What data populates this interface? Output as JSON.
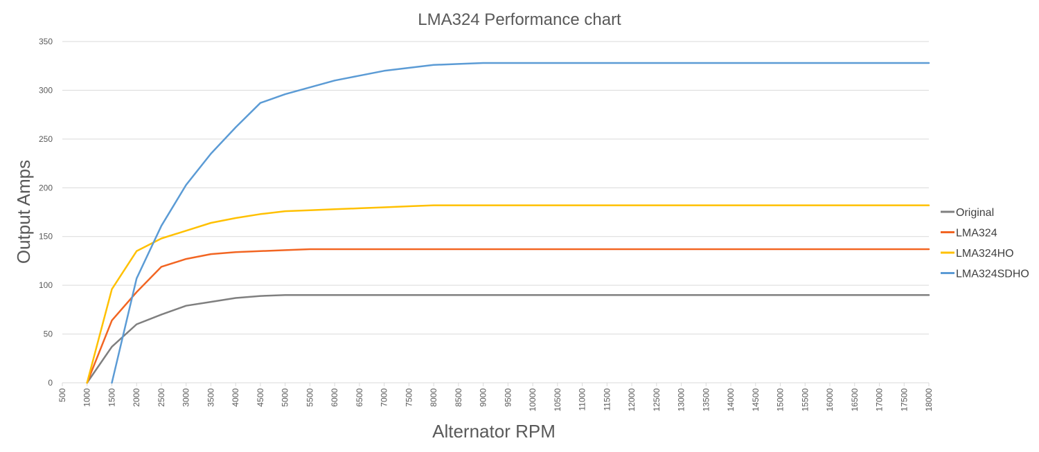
{
  "chart_data": {
    "type": "line",
    "title": "LMA324 Performance chart",
    "xlabel": "Alternator RPM",
    "ylabel": "Output Amps",
    "ylim": [
      0,
      350
    ],
    "y_ticks": [
      "0",
      "50",
      "100",
      "150",
      "200",
      "250",
      "300",
      "350"
    ],
    "grid": true,
    "legend_position": "right",
    "categories": [
      "500",
      "1000",
      "1500",
      "2000",
      "2500",
      "3000",
      "3500",
      "4000",
      "4500",
      "5000",
      "5500",
      "6000",
      "6500",
      "7000",
      "7500",
      "8000",
      "8500",
      "9000",
      "9500",
      "10000",
      "10500",
      "11000",
      "11500",
      "12000",
      "12500",
      "13000",
      "13500",
      "14000",
      "14500",
      "15000",
      "15500",
      "16000",
      "16500",
      "17000",
      "17500",
      "18000"
    ],
    "series": [
      {
        "name": "Original",
        "color": "#7f7f7f",
        "values": [
          null,
          0,
          37,
          60,
          70,
          79,
          83,
          87,
          89,
          90,
          90,
          90,
          90,
          90,
          90,
          90,
          90,
          90,
          90,
          90,
          90,
          90,
          90,
          90,
          90,
          90,
          90,
          90,
          90,
          90,
          90,
          90,
          90,
          90,
          90,
          90
        ]
      },
      {
        "name": "LMA324",
        "color": "#f26522",
        "values": [
          null,
          0,
          64,
          93,
          119,
          127,
          132,
          134,
          135,
          136,
          137,
          137,
          137,
          137,
          137,
          137,
          137,
          137,
          137,
          137,
          137,
          137,
          137,
          137,
          137,
          137,
          137,
          137,
          137,
          137,
          137,
          137,
          137,
          137,
          137,
          137
        ]
      },
      {
        "name": "LMA324HO",
        "color": "#ffc000",
        "values": [
          null,
          0,
          96,
          135,
          148,
          156,
          164,
          169,
          173,
          176,
          177,
          178,
          179,
          180,
          181,
          182,
          182,
          182,
          182,
          182,
          182,
          182,
          182,
          182,
          182,
          182,
          182,
          182,
          182,
          182,
          182,
          182,
          182,
          182,
          182,
          182
        ]
      },
      {
        "name": "LMA324SDHO",
        "color": "#5b9bd5",
        "values": [
          null,
          null,
          0,
          107,
          161,
          203,
          235,
          262,
          287,
          296,
          303,
          310,
          315,
          320,
          323,
          326,
          327,
          328,
          328,
          328,
          328,
          328,
          328,
          328,
          328,
          328,
          328,
          328,
          328,
          328,
          328,
          328,
          328,
          328,
          328,
          328
        ]
      }
    ]
  }
}
